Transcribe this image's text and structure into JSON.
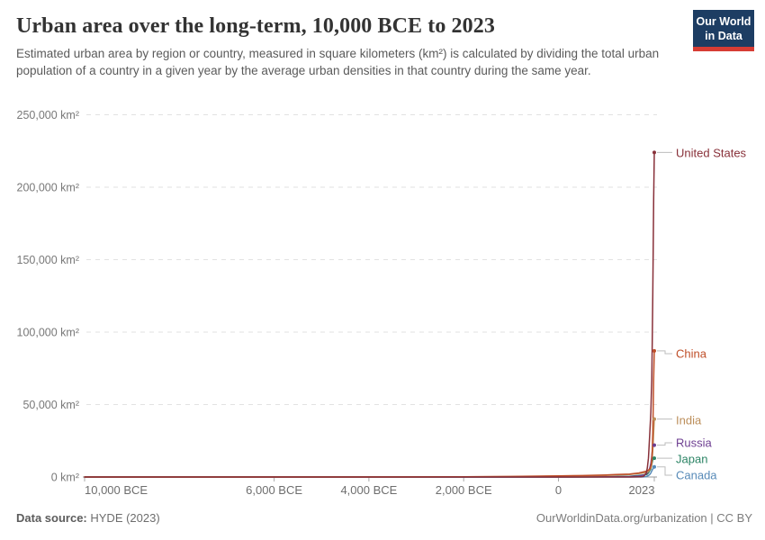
{
  "header": {
    "title": "Urban area over the long-term, 10,000 BCE to 2023",
    "subtitle": "Estimated urban area by region or country, measured in square kilometers (km²) is calculated by dividing the total urban population of a country in a given year by the average urban densities in that country during the same year.",
    "logo": {
      "line1": "Our World",
      "line2": "in Data",
      "bg_color": "#1d3d63",
      "accent_color": "#d73c34"
    }
  },
  "chart_data": {
    "type": "line",
    "title": "Urban area over the long-term, 10,000 BCE to 2023",
    "unit": "km²",
    "grid": "dashed-horizontal",
    "legend_position": "right-edge-labels",
    "x_axis": {
      "min": -10000,
      "max": 2023,
      "ticks": [
        {
          "year": -10000,
          "label": "10,000 BCE",
          "anchor": "start",
          "dx": 0
        },
        {
          "year": -6000,
          "label": "6,000 BCE",
          "anchor": "middle",
          "dx": 0
        },
        {
          "year": -4000,
          "label": "4,000 BCE",
          "anchor": "middle",
          "dx": 0
        },
        {
          "year": -2000,
          "label": "2,000 BCE",
          "anchor": "middle",
          "dx": 0
        },
        {
          "year": 0,
          "label": "0",
          "anchor": "middle",
          "dx": 0
        },
        {
          "year": 2023,
          "label": "2023",
          "anchor": "middle",
          "dx": -14
        }
      ]
    },
    "y_axis": {
      "min": 0,
      "max": 250000,
      "ticks": [
        {
          "value": 0,
          "label": "0 km²"
        },
        {
          "value": 50000,
          "label": "50,000 km²"
        },
        {
          "value": 100000,
          "label": "100,000 km²"
        },
        {
          "value": 150000,
          "label": "150,000 km²"
        },
        {
          "value": 200000,
          "label": "200,000 km²"
        },
        {
          "value": 250000,
          "label": "250,000 km²"
        }
      ]
    },
    "series": [
      {
        "name": "United States",
        "color": "#883039",
        "label_y": 170,
        "points": [
          [
            -10000,
            0
          ],
          [
            0,
            5
          ],
          [
            1000,
            10
          ],
          [
            1500,
            30
          ],
          [
            1700,
            100
          ],
          [
            1750,
            200
          ],
          [
            1800,
            500
          ],
          [
            1850,
            2500
          ],
          [
            1875,
            6000
          ],
          [
            1900,
            13000
          ],
          [
            1925,
            28000
          ],
          [
            1950,
            45000
          ],
          [
            1960,
            57000
          ],
          [
            1970,
            67000
          ],
          [
            1980,
            92000
          ],
          [
            1990,
            125000
          ],
          [
            2000,
            158000
          ],
          [
            2010,
            192000
          ],
          [
            2023,
            224000
          ]
        ]
      },
      {
        "name": "China",
        "color": "#bf4e28",
        "label_y": 393,
        "points": [
          [
            -10000,
            0
          ],
          [
            -5000,
            30
          ],
          [
            -3000,
            80
          ],
          [
            -2000,
            150
          ],
          [
            -1000,
            350
          ],
          [
            0,
            800
          ],
          [
            500,
            1000
          ],
          [
            1000,
            1400
          ],
          [
            1200,
            1700
          ],
          [
            1500,
            2000
          ],
          [
            1700,
            2800
          ],
          [
            1800,
            3600
          ],
          [
            1850,
            4000
          ],
          [
            1900,
            4800
          ],
          [
            1930,
            5500
          ],
          [
            1950,
            7500
          ],
          [
            1960,
            9000
          ],
          [
            1970,
            12000
          ],
          [
            1980,
            18000
          ],
          [
            1990,
            30000
          ],
          [
            2000,
            48000
          ],
          [
            2010,
            68000
          ],
          [
            2023,
            87000
          ]
        ]
      },
      {
        "name": "India",
        "color": "#bc8e5a",
        "label_y": 467,
        "points": [
          [
            -10000,
            0
          ],
          [
            -3000,
            60
          ],
          [
            -2000,
            120
          ],
          [
            -1000,
            250
          ],
          [
            0,
            600
          ],
          [
            500,
            800
          ],
          [
            1000,
            1100
          ],
          [
            1500,
            1700
          ],
          [
            1700,
            2400
          ],
          [
            1800,
            2800
          ],
          [
            1850,
            3000
          ],
          [
            1900,
            3800
          ],
          [
            1950,
            6000
          ],
          [
            1970,
            9500
          ],
          [
            1980,
            13000
          ],
          [
            1990,
            18000
          ],
          [
            2000,
            24000
          ],
          [
            2010,
            31000
          ],
          [
            2023,
            40000
          ]
        ]
      },
      {
        "name": "Russia",
        "color": "#6d3e91",
        "label_y": 492,
        "points": [
          [
            -10000,
            0
          ],
          [
            0,
            20
          ],
          [
            1000,
            100
          ],
          [
            1500,
            300
          ],
          [
            1700,
            700
          ],
          [
            1800,
            1400
          ],
          [
            1850,
            2000
          ],
          [
            1900,
            3800
          ],
          [
            1930,
            6500
          ],
          [
            1950,
            9500
          ],
          [
            1970,
            14500
          ],
          [
            1980,
            17500
          ],
          [
            1990,
            20500
          ],
          [
            2000,
            21000
          ],
          [
            2010,
            21500
          ],
          [
            2023,
            22000
          ]
        ]
      },
      {
        "name": "Japan",
        "color": "#2c8465",
        "label_y": 510,
        "points": [
          [
            -10000,
            0
          ],
          [
            0,
            20
          ],
          [
            1000,
            150
          ],
          [
            1500,
            500
          ],
          [
            1700,
            1100
          ],
          [
            1800,
            1400
          ],
          [
            1870,
            1800
          ],
          [
            1900,
            2800
          ],
          [
            1930,
            4500
          ],
          [
            1950,
            5500
          ],
          [
            1970,
            8800
          ],
          [
            1990,
            11800
          ],
          [
            2000,
            12400
          ],
          [
            2010,
            12800
          ],
          [
            2023,
            13000
          ]
        ]
      },
      {
        "name": "Canada",
        "color": "#578ab8",
        "label_y": 528,
        "points": [
          [
            -10000,
            0
          ],
          [
            1700,
            10
          ],
          [
            1800,
            80
          ],
          [
            1850,
            300
          ],
          [
            1900,
            1000
          ],
          [
            1930,
            1800
          ],
          [
            1950,
            2800
          ],
          [
            1970,
            4200
          ],
          [
            1990,
            5400
          ],
          [
            2000,
            6000
          ],
          [
            2010,
            6500
          ],
          [
            2023,
            7000
          ]
        ]
      }
    ]
  },
  "footer": {
    "source_label": "Data source:",
    "source_value": "HYDE (2023)",
    "right_text": "OurWorldinData.org/urbanization | CC BY"
  }
}
